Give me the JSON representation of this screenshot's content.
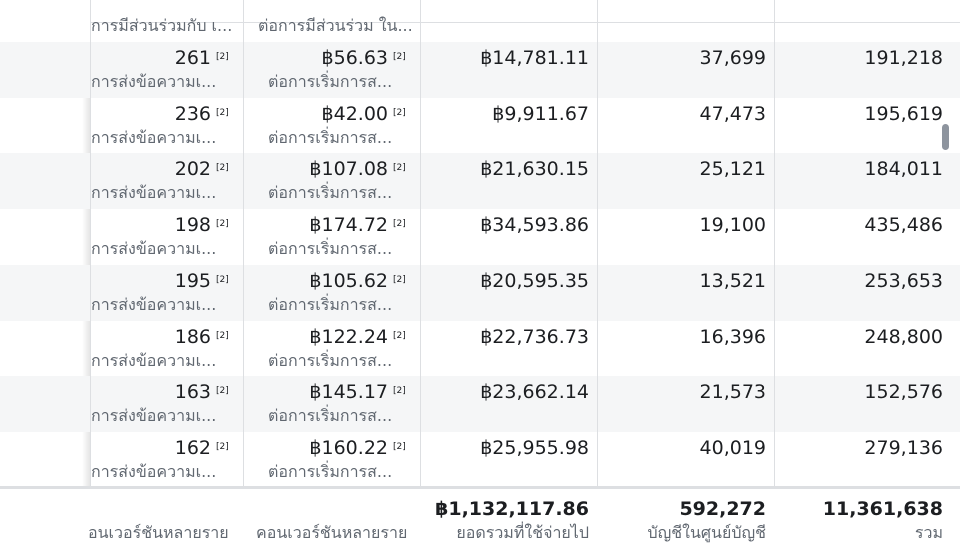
{
  "top_row": {
    "col1_sub": "การมีส่วนร่วมกับ เ...",
    "col2_sub": "ต่อการมีส่วนร่วม ใน..."
  },
  "footnote": "[2]",
  "rows": [
    {
      "conversations": "261",
      "conv_label": "การส่งข้อความเ...",
      "cost": "฿56.63",
      "cost_label": "ต่อการเริ่มการส...",
      "spend": "฿14,781.11",
      "accounts": "37,699",
      "total": "191,218"
    },
    {
      "conversations": "236",
      "conv_label": "การส่งข้อความเ...",
      "cost": "฿42.00",
      "cost_label": "ต่อการเริ่มการส...",
      "spend": "฿9,911.67",
      "accounts": "47,473",
      "total": "195,619"
    },
    {
      "conversations": "202",
      "conv_label": "การส่งข้อความเ...",
      "cost": "฿107.08",
      "cost_label": "ต่อการเริ่มการส...",
      "spend": "฿21,630.15",
      "accounts": "25,121",
      "total": "184,011"
    },
    {
      "conversations": "198",
      "conv_label": "การส่งข้อความเ...",
      "cost": "฿174.72",
      "cost_label": "ต่อการเริ่มการส...",
      "spend": "฿34,593.86",
      "accounts": "19,100",
      "total": "435,486"
    },
    {
      "conversations": "195",
      "conv_label": "การส่งข้อความเ...",
      "cost": "฿105.62",
      "cost_label": "ต่อการเริ่มการส...",
      "spend": "฿20,595.35",
      "accounts": "13,521",
      "total": "253,653"
    },
    {
      "conversations": "186",
      "conv_label": "การส่งข้อความเ...",
      "cost": "฿122.24",
      "cost_label": "ต่อการเริ่มการส...",
      "spend": "฿22,736.73",
      "accounts": "16,396",
      "total": "248,800"
    },
    {
      "conversations": "163",
      "conv_label": "การส่งข้อความเ...",
      "cost": "฿145.17",
      "cost_label": "ต่อการเริ่มการส...",
      "spend": "฿23,662.14",
      "accounts": "21,573",
      "total": "152,576"
    },
    {
      "conversations": "162",
      "conv_label": "การส่งข้อความเ...",
      "cost": "฿160.22",
      "cost_label": "ต่อการเริ่มการส...",
      "spend": "฿25,955.98",
      "accounts": "40,019",
      "total": "279,136"
    }
  ],
  "footer": {
    "col1_label": "อนเวอร์ชันหลายราย",
    "col2_label": "คอนเวอร์ชันหลายราย",
    "spend_total": "฿1,132,117.86",
    "spend_label": "ยอดรวมที่ใช้จ่ายไป",
    "accounts_total": "592,272",
    "accounts_label": "บัญชีในศูนย์บัญชี",
    "reach_total": "11,361,638",
    "reach_label": "รวม"
  }
}
